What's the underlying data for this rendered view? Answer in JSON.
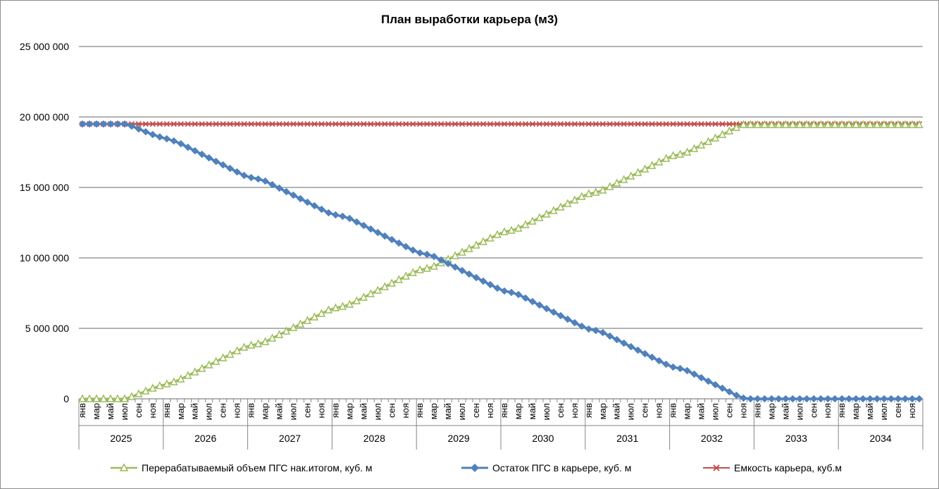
{
  "chart_data": {
    "type": "line",
    "title": "План выработки карьера (м3)",
    "xlabel": "",
    "ylabel": "",
    "ylim": [
      0,
      25000000
    ],
    "yticks": [
      "25 000 000",
      "20 000 000",
      "15 000 000",
      "10 000 000",
      "5 000 000",
      "0"
    ],
    "ytick_values": [
      25000000,
      20000000,
      15000000,
      10000000,
      5000000,
      0
    ],
    "years": [
      "2025",
      "2026",
      "2027",
      "2028",
      "2029",
      "2030",
      "2031",
      "2032",
      "2033",
      "2034"
    ],
    "month_labels": [
      "янв",
      "мар",
      "май",
      "июл",
      "сен",
      "ноя"
    ],
    "months_per_year": 12,
    "grid": true,
    "legend_position": "bottom",
    "series": [
      {
        "name": "Перерабатываемый  объем ПГС нак.итогом, куб. м",
        "color": "#9bbb59",
        "marker": "triangle",
        "values": [
          0,
          0,
          0,
          0,
          0,
          0,
          0,
          150000,
          350000,
          550000,
          750000,
          920000,
          1050000,
          1200000,
          1400000,
          1650000,
          1900000,
          2150000,
          2400000,
          2650000,
          2900000,
          3150000,
          3400000,
          3650000,
          3800000,
          3900000,
          4050000,
          4300000,
          4550000,
          4800000,
          5050000,
          5300000,
          5550000,
          5800000,
          6050000,
          6300000,
          6450000,
          6550000,
          6700000,
          6950000,
          7200000,
          7450000,
          7700000,
          7950000,
          8200000,
          8450000,
          8700000,
          8950000,
          9150000,
          9250000,
          9400000,
          9650000,
          9900000,
          10150000,
          10400000,
          10650000,
          10900000,
          11150000,
          11400000,
          11650000,
          11850000,
          11950000,
          12100000,
          12350000,
          12600000,
          12850000,
          13100000,
          13350000,
          13600000,
          13850000,
          14100000,
          14350000,
          14550000,
          14650000,
          14800000,
          15050000,
          15300000,
          15550000,
          15800000,
          16050000,
          16300000,
          16550000,
          16800000,
          17050000,
          17250000,
          17350000,
          17500000,
          17750000,
          18000000,
          18250000,
          18500000,
          18750000,
          19000000,
          19250000,
          19450000,
          19450000,
          19450000,
          19450000,
          19450000,
          19450000,
          19450000,
          19450000,
          19450000,
          19450000,
          19450000,
          19450000,
          19450000,
          19450000,
          19450000,
          19450000,
          19450000,
          19450000,
          19450000,
          19450000,
          19450000,
          19450000,
          19450000,
          19450000,
          19450000,
          19450000
        ]
      },
      {
        "name": "Остаток ПГС в карьере, куб. м",
        "color": "#4f81bd",
        "marker": "diamond",
        "values": [
          19500000,
          19500000,
          19500000,
          19500000,
          19500000,
          19500000,
          19500000,
          19350000,
          19150000,
          18950000,
          18750000,
          18580000,
          18450000,
          18300000,
          18100000,
          17850000,
          17600000,
          17350000,
          17100000,
          16850000,
          16600000,
          16350000,
          16100000,
          15850000,
          15700000,
          15600000,
          15450000,
          15200000,
          14950000,
          14700000,
          14450000,
          14200000,
          13950000,
          13700000,
          13450000,
          13200000,
          13050000,
          12950000,
          12800000,
          12550000,
          12300000,
          12050000,
          11800000,
          11550000,
          11300000,
          11050000,
          10800000,
          10550000,
          10350000,
          10250000,
          10100000,
          9850000,
          9600000,
          9350000,
          9100000,
          8850000,
          8600000,
          8350000,
          8100000,
          7850000,
          7650000,
          7550000,
          7400000,
          7150000,
          6900000,
          6650000,
          6400000,
          6150000,
          5900000,
          5650000,
          5400000,
          5150000,
          4950000,
          4850000,
          4700000,
          4450000,
          4200000,
          3950000,
          3700000,
          3450000,
          3200000,
          2950000,
          2700000,
          2450000,
          2250000,
          2150000,
          2000000,
          1750000,
          1500000,
          1250000,
          1000000,
          750000,
          500000,
          250000,
          50000,
          0,
          0,
          0,
          0,
          0,
          0,
          0,
          0,
          0,
          0,
          0,
          0,
          0,
          0,
          0,
          0,
          0,
          0,
          0,
          0,
          0,
          0,
          0,
          0,
          0
        ]
      },
      {
        "name": "Емкость карьера, куб.м",
        "color": "#c0504d",
        "marker": "x",
        "values": [
          19500000,
          19500000,
          19500000,
          19500000,
          19500000,
          19500000,
          19500000,
          19500000,
          19500000,
          19500000,
          19500000,
          19500000,
          19500000,
          19500000,
          19500000,
          19500000,
          19500000,
          19500000,
          19500000,
          19500000,
          19500000,
          19500000,
          19500000,
          19500000,
          19500000,
          19500000,
          19500000,
          19500000,
          19500000,
          19500000,
          19500000,
          19500000,
          19500000,
          19500000,
          19500000,
          19500000,
          19500000,
          19500000,
          19500000,
          19500000,
          19500000,
          19500000,
          19500000,
          19500000,
          19500000,
          19500000,
          19500000,
          19500000,
          19500000,
          19500000,
          19500000,
          19500000,
          19500000,
          19500000,
          19500000,
          19500000,
          19500000,
          19500000,
          19500000,
          19500000,
          19500000,
          19500000,
          19500000,
          19500000,
          19500000,
          19500000,
          19500000,
          19500000,
          19500000,
          19500000,
          19500000,
          19500000,
          19500000,
          19500000,
          19500000,
          19500000,
          19500000,
          19500000,
          19500000,
          19500000,
          19500000,
          19500000,
          19500000,
          19500000,
          19500000,
          19500000,
          19500000,
          19500000,
          19500000,
          19500000,
          19500000,
          19500000,
          19500000,
          19500000,
          19500000,
          19500000,
          19500000,
          19500000,
          19500000,
          19500000,
          19500000,
          19500000,
          19500000,
          19500000,
          19500000,
          19500000,
          19500000,
          19500000,
          19500000,
          19500000,
          19500000,
          19500000,
          19500000,
          19500000,
          19500000,
          19500000,
          19500000,
          19500000,
          19500000,
          19500000
        ]
      }
    ]
  }
}
